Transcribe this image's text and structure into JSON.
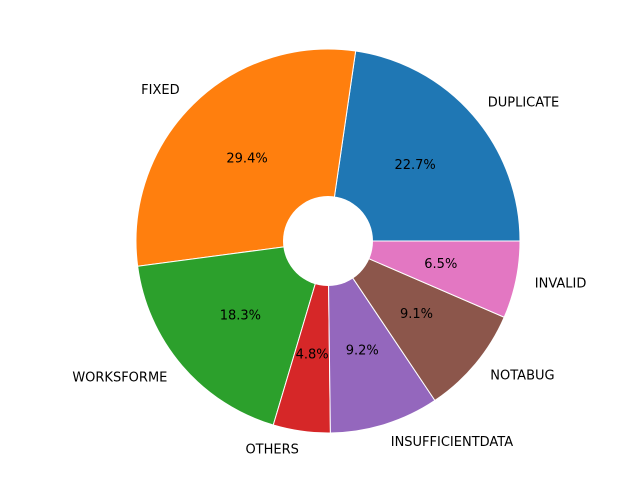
{
  "chart_data": {
    "type": "pie",
    "donut": true,
    "start_angle_deg": 0,
    "direction": "counterclockwise",
    "slices": [
      {
        "label": "DUPLICATE",
        "value": 22.7,
        "pct_label": "22.7%",
        "color": "#1f77b4"
      },
      {
        "label": "FIXED",
        "value": 29.4,
        "pct_label": "29.4%",
        "color": "#ff7f0e"
      },
      {
        "label": "WORKSFORME",
        "value": 18.3,
        "pct_label": "18.3%",
        "color": "#2ca02c"
      },
      {
        "label": "OTHERS",
        "value": 4.8,
        "pct_label": "4.8%",
        "color": "#d62728"
      },
      {
        "label": "INSUFFICIENTDATA",
        "value": 9.2,
        "pct_label": "9.2%",
        "color": "#9467bd"
      },
      {
        "label": "NOTABUG",
        "value": 9.1,
        "pct_label": "9.1%",
        "color": "#8c564b"
      },
      {
        "label": "INVALID",
        "value": 6.5,
        "pct_label": "6.5%",
        "color": "#e377c2"
      }
    ]
  }
}
